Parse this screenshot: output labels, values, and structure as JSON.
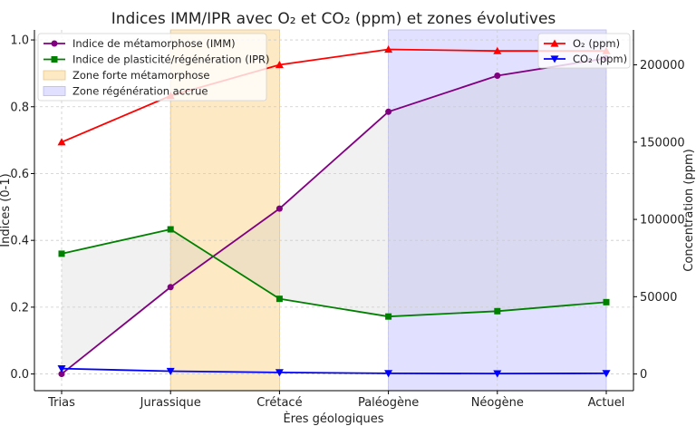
{
  "chart_data": {
    "type": "line",
    "title": "Indices IMM/IPR avec O₂ et CO₂ (ppm) et zones évolutives",
    "xlabel": "Ères géologiques",
    "ylabel_left": "Indices (0-1)",
    "ylabel_right": "Concentration (ppm)",
    "categories": [
      "Trias",
      "Jurassique",
      "Crétacé",
      "Paléogène",
      "Néogène",
      "Actuel"
    ],
    "ylim_left": [
      -0.05,
      1.03
    ],
    "ylim_right": [
      -10800,
      222600
    ],
    "yticks_left": [
      "0.0",
      "0.2",
      "0.4",
      "0.6",
      "0.8",
      "1.0"
    ],
    "yticks_right": [
      "0",
      "50000",
      "100000",
      "150000",
      "200000"
    ],
    "grid": true,
    "series": [
      {
        "name": "Indice de métamorphose (IMM)",
        "axis": "left",
        "marker": "circle",
        "color": "#800080",
        "values": [
          0.0,
          0.26,
          0.495,
          0.785,
          0.893,
          0.945
        ]
      },
      {
        "name": "Indice de plasticité/régénération (IPR)",
        "axis": "left",
        "marker": "square",
        "color": "#008000",
        "values": [
          0.36,
          0.433,
          0.225,
          0.172,
          0.188,
          0.215
        ]
      },
      {
        "name": "O₂ (ppm)",
        "axis": "right",
        "marker": "triangle-up",
        "color": "#ff0000",
        "values": [
          150000,
          180000,
          200000,
          210000,
          209000,
          209000
        ]
      },
      {
        "name": "CO₂ (ppm)",
        "axis": "right",
        "marker": "triangle-down",
        "color": "#0000ff",
        "values": [
          3500,
          1800,
          1000,
          400,
          280,
          415
        ]
      }
    ],
    "zones": [
      {
        "name": "Zone forte métamorphose",
        "from": "Jurassique",
        "to": "Crétacé",
        "color": "#fde9c4"
      },
      {
        "name": "Zone régénération accrue",
        "from": "Paléogène",
        "to": "Actuel",
        "color": "#e1e1ff"
      }
    ],
    "fill_between": {
      "series": [
        "Indice de métamorphose (IMM)",
        "Indice de plasticité/régénération (IPR)"
      ],
      "color": "#bdbdbd"
    },
    "legend_left_position": "top-left",
    "legend_right_position": "top-right"
  }
}
